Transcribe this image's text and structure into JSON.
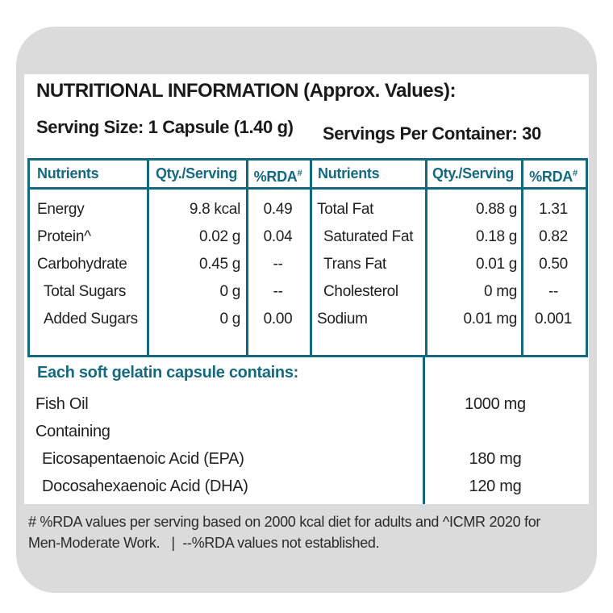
{
  "colors": {
    "teal": "#15697e",
    "card_bg": "#dbdbdb",
    "panel_bg": "#ffffff",
    "text": "#1f1f1f"
  },
  "header": {
    "title": "NUTRITIONAL INFORMATION (Approx. Values):",
    "serving_size": "Serving Size: 1 Capsule (1.40 g)",
    "servings_per_container": "Servings Per Container: 30"
  },
  "table": {
    "header": {
      "nutrients": "Nutrients",
      "qty": "Qty./Serving",
      "rda": "%RDA",
      "rda_sup": "#"
    },
    "left_rows": [
      {
        "name": "Energy",
        "qty": "9.8 kcal",
        "rda": "0.49"
      },
      {
        "name": "Protein^",
        "qty": "0.02 g",
        "rda": "0.04"
      },
      {
        "name": "Carbohydrate",
        "qty": "0.45 g",
        "rda": "--"
      },
      {
        "name": "Total Sugars",
        "qty": "0 g",
        "rda": "--"
      },
      {
        "name": "Added Sugars",
        "qty": "0 g",
        "rda": "0.00"
      }
    ],
    "right_rows": [
      {
        "name": "Total Fat",
        "qty": "0.88 g",
        "rda": "1.31"
      },
      {
        "name": "Saturated Fat",
        "qty": "0.18 g",
        "rda": "0.82"
      },
      {
        "name": "Trans Fat",
        "qty": "0.01 g",
        "rda": "0.50"
      },
      {
        "name": "Cholesterol",
        "qty": "0 mg",
        "rda": "--"
      },
      {
        "name": "Sodium",
        "qty": "0.01 mg",
        "rda": "0.001"
      }
    ]
  },
  "capsule": {
    "heading": "Each soft gelatin capsule contains:",
    "rows": [
      {
        "name": "Fish Oil",
        "qty": "1000 mg"
      },
      {
        "name": "Containing",
        "qty": ""
      },
      {
        "name": "Eicosapentaenoic Acid (EPA)",
        "qty": "180 mg"
      },
      {
        "name": "Docosahexaenoic Acid (DHA)",
        "qty": "120 mg"
      }
    ]
  },
  "footnote": {
    "line1": "# %RDA values per serving based on 2000 kcal diet for adults and ^ICMR 2020 for",
    "line2": "Men-Moderate Work.   |  --%RDA values not established."
  }
}
